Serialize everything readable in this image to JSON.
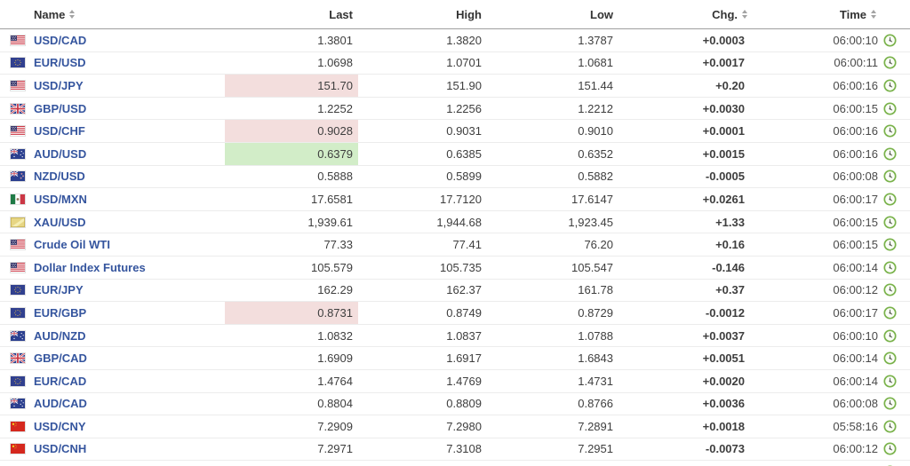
{
  "app": {
    "view": "forex-quotes-table"
  },
  "colors": {
    "pair_link": "#35559e",
    "positive_change": "#3ba144",
    "negative_change": "#e13d3d",
    "flash_down_bg": "#f3dedd",
    "flash_up_bg": "#d2edc8",
    "clock_ring": "#79b24a"
  },
  "table": {
    "headers": {
      "name": {
        "label": "Name",
        "sortable": true,
        "sort_icon": "sort-arrows-icon"
      },
      "last": {
        "label": "Last",
        "sortable": false
      },
      "high": {
        "label": "High",
        "sortable": false
      },
      "low": {
        "label": "Low",
        "sortable": false
      },
      "chg": {
        "label": "Chg.",
        "sortable": true,
        "sort_icon": "sort-arrows-icon"
      },
      "time": {
        "label": "Time",
        "sortable": true,
        "sort_icon": "sort-arrows-icon"
      }
    },
    "rows": [
      {
        "flag": "us",
        "name": "USD/CAD",
        "last": "1.3801",
        "high": "1.3820",
        "low": "1.3787",
        "chg": "+0.0003",
        "chg_dir": "up",
        "time": "06:00:10",
        "last_flash": null
      },
      {
        "flag": "eu",
        "name": "EUR/USD",
        "last": "1.0698",
        "high": "1.0701",
        "low": "1.0681",
        "chg": "+0.0017",
        "chg_dir": "up",
        "time": "06:00:11",
        "last_flash": null
      },
      {
        "flag": "us",
        "name": "USD/JPY",
        "last": "151.70",
        "high": "151.90",
        "low": "151.44",
        "chg": "+0.20",
        "chg_dir": "up",
        "time": "06:00:16",
        "last_flash": "down"
      },
      {
        "flag": "uk",
        "name": "GBP/USD",
        "last": "1.2252",
        "high": "1.2256",
        "low": "1.2212",
        "chg": "+0.0030",
        "chg_dir": "up",
        "time": "06:00:15",
        "last_flash": null
      },
      {
        "flag": "us",
        "name": "USD/CHF",
        "last": "0.9028",
        "high": "0.9031",
        "low": "0.9010",
        "chg": "+0.0001",
        "chg_dir": "up",
        "time": "06:00:16",
        "last_flash": "down"
      },
      {
        "flag": "au",
        "name": "AUD/USD",
        "last": "0.6379",
        "high": "0.6385",
        "low": "0.6352",
        "chg": "+0.0015",
        "chg_dir": "up",
        "time": "06:00:16",
        "last_flash": "up"
      },
      {
        "flag": "nz",
        "name": "NZD/USD",
        "last": "0.5888",
        "high": "0.5899",
        "low": "0.5882",
        "chg": "-0.0005",
        "chg_dir": "down",
        "time": "06:00:08",
        "last_flash": null
      },
      {
        "flag": "mx",
        "name": "USD/MXN",
        "last": "17.6581",
        "high": "17.7120",
        "low": "17.6147",
        "chg": "+0.0261",
        "chg_dir": "up",
        "time": "06:00:17",
        "last_flash": null
      },
      {
        "flag": "gold",
        "name": "XAU/USD",
        "last": "1,939.61",
        "high": "1,944.68",
        "low": "1,923.45",
        "chg": "+1.33",
        "chg_dir": "up",
        "time": "06:00:15",
        "last_flash": null
      },
      {
        "flag": "us",
        "name": "Crude Oil WTI",
        "last": "77.33",
        "high": "77.41",
        "low": "76.20",
        "chg": "+0.16",
        "chg_dir": "up",
        "time": "06:00:15",
        "last_flash": null
      },
      {
        "flag": "us",
        "name": "Dollar Index Futures",
        "last": "105.579",
        "high": "105.735",
        "low": "105.547",
        "chg": "-0.146",
        "chg_dir": "down",
        "time": "06:00:14",
        "last_flash": null
      },
      {
        "flag": "eu",
        "name": "EUR/JPY",
        "last": "162.29",
        "high": "162.37",
        "low": "161.78",
        "chg": "+0.37",
        "chg_dir": "up",
        "time": "06:00:12",
        "last_flash": null
      },
      {
        "flag": "eu",
        "name": "EUR/GBP",
        "last": "0.8731",
        "high": "0.8749",
        "low": "0.8729",
        "chg": "-0.0012",
        "chg_dir": "down",
        "time": "06:00:17",
        "last_flash": "down"
      },
      {
        "flag": "au",
        "name": "AUD/NZD",
        "last": "1.0832",
        "high": "1.0837",
        "low": "1.0788",
        "chg": "+0.0037",
        "chg_dir": "up",
        "time": "06:00:10",
        "last_flash": null
      },
      {
        "flag": "uk",
        "name": "GBP/CAD",
        "last": "1.6909",
        "high": "1.6917",
        "low": "1.6843",
        "chg": "+0.0051",
        "chg_dir": "up",
        "time": "06:00:14",
        "last_flash": null
      },
      {
        "flag": "eu",
        "name": "EUR/CAD",
        "last": "1.4764",
        "high": "1.4769",
        "low": "1.4731",
        "chg": "+0.0020",
        "chg_dir": "up",
        "time": "06:00:14",
        "last_flash": null
      },
      {
        "flag": "au",
        "name": "AUD/CAD",
        "last": "0.8804",
        "high": "0.8809",
        "low": "0.8766",
        "chg": "+0.0036",
        "chg_dir": "up",
        "time": "06:00:08",
        "last_flash": null
      },
      {
        "flag": "cn",
        "name": "USD/CNY",
        "last": "7.2909",
        "high": "7.2980",
        "low": "7.2891",
        "chg": "+0.0018",
        "chg_dir": "up",
        "time": "05:58:16",
        "last_flash": null
      },
      {
        "flag": "cn",
        "name": "USD/CNH",
        "last": "7.2971",
        "high": "7.3108",
        "low": "7.2951",
        "chg": "-0.0073",
        "chg_dir": "down",
        "time": "06:00:12",
        "last_flash": null
      }
    ],
    "partial_bottom_row": {
      "flag": "red",
      "note": "next row clipped at viewport bottom"
    }
  }
}
